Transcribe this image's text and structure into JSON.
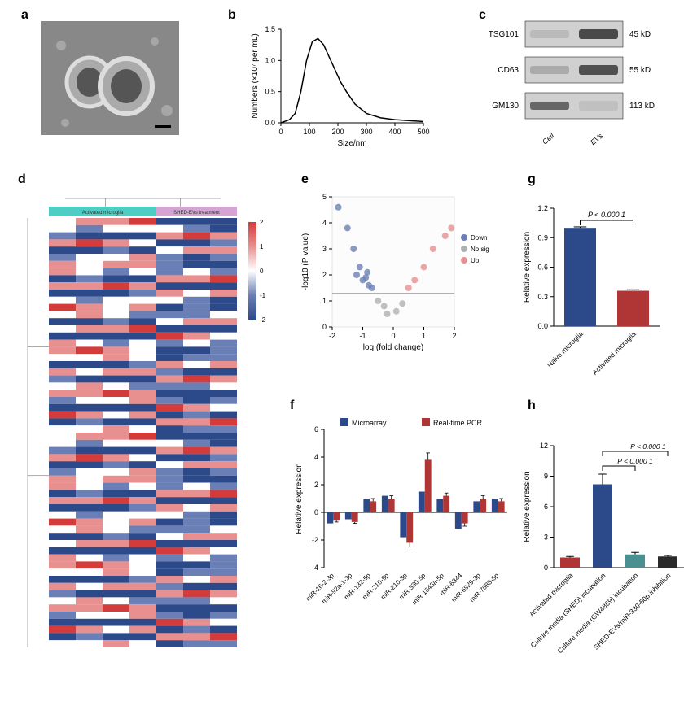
{
  "panels": {
    "a": {
      "label": "a"
    },
    "b": {
      "label": "b",
      "ylabel": "Numbers (×10⁷ per mL)",
      "xlabel": "Size/nm",
      "xlim": [
        0,
        500
      ],
      "xtick_step": 100,
      "ylim": [
        0,
        1.5
      ],
      "ytick_step": 0.5,
      "line_color": "#000000",
      "data_x": [
        0,
        30,
        50,
        70,
        90,
        110,
        130,
        150,
        170,
        190,
        210,
        230,
        260,
        300,
        350,
        400,
        500
      ],
      "data_y": [
        0.0,
        0.05,
        0.15,
        0.5,
        1.0,
        1.3,
        1.35,
        1.25,
        1.05,
        0.85,
        0.65,
        0.5,
        0.3,
        0.15,
        0.08,
        0.05,
        0.02
      ]
    },
    "c": {
      "label": "c",
      "rows": [
        {
          "name": "TSG101",
          "size": "45 kD",
          "cell": 0.15,
          "evs": 0.9
        },
        {
          "name": "CD63",
          "size": "55 kD",
          "cell": 0.25,
          "evs": 0.85
        },
        {
          "name": "GM130",
          "size": "113 kD",
          "cell": 0.7,
          "evs": 0.1
        }
      ],
      "lanes": [
        "Cell",
        "EVs"
      ],
      "band_color": "#3a3a3a",
      "bg_color": "#d0d0d0"
    },
    "d": {
      "label": "d",
      "groups": [
        {
          "label": "Activated microglia",
          "color": "#4ecdc4",
          "cols": 4
        },
        {
          "label": "SHED-EVs treatment",
          "color": "#d4a5d4",
          "cols": 3
        }
      ],
      "colorscale": {
        "min": -2,
        "max": 2,
        "colors": [
          "#2c4a8a",
          "#6a7fb5",
          "#ffffff",
          "#e89090",
          "#d43b3b"
        ]
      },
      "rows": 60
    },
    "e": {
      "label": "e",
      "xlabel": "log (fold change)",
      "ylabel": "-log10 (P value)",
      "xlim": [
        -2,
        2
      ],
      "xtick_step": 1,
      "ylim": [
        0,
        5
      ],
      "ytick_step": 1,
      "threshold_y": 1.3,
      "legend": [
        {
          "label": "Down",
          "color": "#6a7fb5"
        },
        {
          "label": "No sig",
          "color": "#b0b0b0"
        },
        {
          "label": "Up",
          "color": "#e89090"
        }
      ],
      "points": [
        {
          "x": -1.8,
          "y": 4.6,
          "c": "#6a7fb5"
        },
        {
          "x": -1.5,
          "y": 3.8,
          "c": "#6a7fb5"
        },
        {
          "x": -1.3,
          "y": 3.0,
          "c": "#6a7fb5"
        },
        {
          "x": -1.2,
          "y": 2.0,
          "c": "#6a7fb5"
        },
        {
          "x": -1.1,
          "y": 2.3,
          "c": "#6a7fb5"
        },
        {
          "x": -1.0,
          "y": 1.8,
          "c": "#6a7fb5"
        },
        {
          "x": -0.9,
          "y": 1.9,
          "c": "#6a7fb5"
        },
        {
          "x": -0.8,
          "y": 1.6,
          "c": "#6a7fb5"
        },
        {
          "x": -0.85,
          "y": 2.1,
          "c": "#6a7fb5"
        },
        {
          "x": -0.7,
          "y": 1.5,
          "c": "#6a7fb5"
        },
        {
          "x": -0.5,
          "y": 1.0,
          "c": "#b0b0b0"
        },
        {
          "x": -0.3,
          "y": 0.8,
          "c": "#b0b0b0"
        },
        {
          "x": -0.2,
          "y": 0.5,
          "c": "#b0b0b0"
        },
        {
          "x": 0.1,
          "y": 0.6,
          "c": "#b0b0b0"
        },
        {
          "x": 0.3,
          "y": 0.9,
          "c": "#b0b0b0"
        },
        {
          "x": 0.5,
          "y": 1.5,
          "c": "#e89090"
        },
        {
          "x": 0.7,
          "y": 1.8,
          "c": "#e89090"
        },
        {
          "x": 1.0,
          "y": 2.3,
          "c": "#e89090"
        },
        {
          "x": 1.3,
          "y": 3.0,
          "c": "#e89090"
        },
        {
          "x": 1.7,
          "y": 3.5,
          "c": "#e89090"
        },
        {
          "x": 1.9,
          "y": 3.8,
          "c": "#e89090"
        }
      ]
    },
    "f": {
      "label": "f",
      "ylabel": "Relative expression",
      "ylim": [
        -4,
        6
      ],
      "ytick_step": 2,
      "legend": [
        {
          "label": "Microarray",
          "color": "#2c4a8a"
        },
        {
          "label": "Real-time PCR",
          "color": "#b03535"
        }
      ],
      "categories": [
        "miR-16-2-3p",
        "miR-92a-1-3p",
        "miR-132-5p",
        "miR-210-5p",
        "miR-210-3p",
        "miR-330-5p",
        "miR-1843a-5p",
        "miR-6344",
        "miR-6929-3p",
        "miR-7688-5p"
      ],
      "microarray": [
        -0.8,
        -0.5,
        1.0,
        1.2,
        -1.8,
        1.5,
        1.0,
        -1.2,
        0.8,
        1.0
      ],
      "realtime_pcr": [
        -0.6,
        -0.7,
        0.8,
        1.0,
        -2.2,
        3.8,
        1.2,
        -0.8,
        1.0,
        0.8
      ],
      "pcr_err": [
        0.1,
        0.1,
        0.2,
        0.2,
        0.3,
        0.5,
        0.2,
        0.2,
        0.2,
        0.2
      ]
    },
    "g": {
      "label": "g",
      "ylabel": "Relative expression",
      "ylim": [
        0,
        1.2
      ],
      "ytick_step": 0.3,
      "pvalue": "P < 0.000 1",
      "categories": [
        "Naive microglia",
        "Activated microglia"
      ],
      "values": [
        1.0,
        0.36
      ],
      "errors": [
        0.01,
        0.01
      ],
      "colors": [
        "#2c4a8a",
        "#b03535"
      ]
    },
    "h": {
      "label": "h",
      "ylabel": "Relative expression",
      "ylim": [
        0,
        12
      ],
      "ytick_step": 3,
      "pvalues": [
        "P < 0.000 1",
        "P < 0.000 1"
      ],
      "categories": [
        "Activated microglia",
        "Culture media (SHED) incubation",
        "Culture media (GW4869) incubation",
        "SHED-EVs/miR-330-50p inhibition"
      ],
      "values": [
        1.0,
        8.2,
        1.3,
        1.1
      ],
      "errors": [
        0.1,
        1.0,
        0.2,
        0.1
      ],
      "colors": [
        "#b03535",
        "#2c4a8a",
        "#4a9090",
        "#2a2a2a"
      ]
    }
  }
}
